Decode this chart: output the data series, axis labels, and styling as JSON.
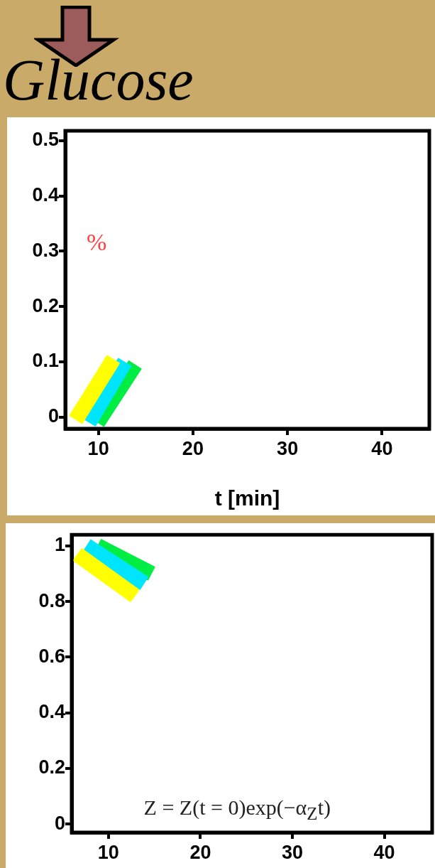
{
  "chart_data": [
    {
      "type": "line",
      "title": "Glucose",
      "xlabel": "t [min]",
      "xlim": [
        6.5,
        45
      ],
      "xticks": [
        10,
        20,
        30,
        40
      ],
      "ylim": [
        -0.021,
        0.518
      ],
      "yticks": [
        0,
        0.1,
        0.2,
        0.3,
        0.4,
        0.5
      ],
      "grid": false,
      "legend": false,
      "marker": "none",
      "line_style": "solid",
      "annotations": [
        "%"
      ],
      "series": [
        {
          "color": "#ffff00",
          "x": [
            7.6,
            11.6
          ],
          "values": [
            -0.005,
            0.105
          ]
        },
        {
          "color": "#00e5ff",
          "x": [
            9.0,
            12.8
          ],
          "values": [
            -0.01,
            0.1
          ]
        },
        {
          "color": "#00ee44",
          "x": [
            9.9,
            13.9
          ],
          "values": [
            -0.01,
            0.095
          ]
        }
      ]
    },
    {
      "type": "line",
      "xlim": [
        6,
        45.2
      ],
      "xticks": [
        10,
        20,
        30,
        40
      ],
      "ylim": [
        -0.03,
        1.04
      ],
      "yticks": [
        0,
        0.2,
        0.4,
        0.6,
        0.8,
        1
      ],
      "grid": false,
      "legend": false,
      "marker": "none",
      "line_style": "solid",
      "annotations": [
        "Z = Z(t = 0)exp(−α$_{Z}$t)"
      ],
      "series": [
        {
          "color": "#ffff00",
          "x": [
            6.6,
            12.9
          ],
          "values": [
            0.97,
            0.82
          ]
        },
        {
          "color": "#00e5ff",
          "x": [
            7.6,
            13.9
          ],
          "values": [
            1.0,
            0.865
          ]
        },
        {
          "color": "#00ee44",
          "x": [
            8.8,
            14.7
          ],
          "values": [
            1.0,
            0.9
          ]
        }
      ]
    }
  ]
}
